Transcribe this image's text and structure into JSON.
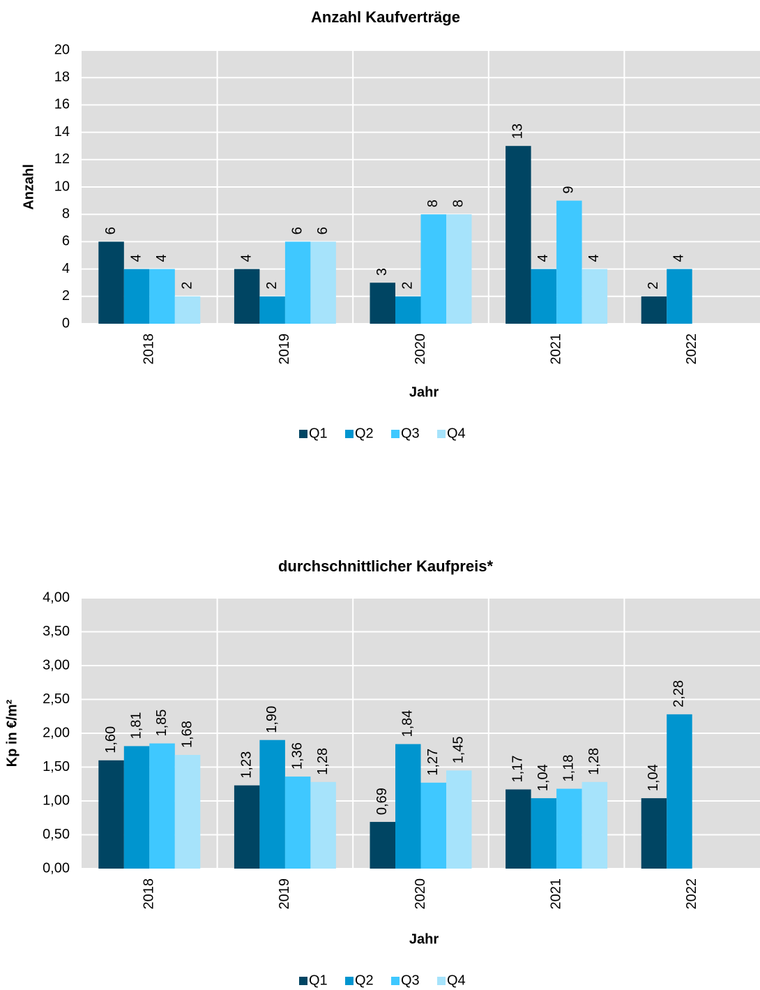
{
  "chart_data": [
    {
      "type": "bar",
      "title": "Anzahl Kaufverträge",
      "x_label": "Jahr",
      "y_label": "Anzahl",
      "categories": [
        "2018",
        "2019",
        "2020",
        "2021",
        "2022"
      ],
      "series": [
        {
          "name": "Q1",
          "color": "#004563",
          "values": [
            6,
            4,
            3,
            13,
            2
          ]
        },
        {
          "name": "Q2",
          "color": "#0095cf",
          "values": [
            4,
            2,
            2,
            4,
            4
          ]
        },
        {
          "name": "Q3",
          "color": "#3fc8ff",
          "values": [
            4,
            6,
            8,
            9,
            null
          ]
        },
        {
          "name": "Q4",
          "color": "#a6e3fb",
          "values": [
            2,
            6,
            8,
            4,
            null
          ]
        }
      ],
      "ylim": [
        0,
        20
      ],
      "yticks": [
        0,
        2,
        4,
        6,
        8,
        10,
        12,
        14,
        16,
        18,
        20
      ],
      "grid": true,
      "legend": "bottom"
    },
    {
      "type": "bar",
      "title": "durchschnittlicher Kaufpreis*",
      "x_label": "Jahr",
      "y_label": "Kp in €/m²",
      "categories": [
        "2018",
        "2019",
        "2020",
        "2021",
        "2022"
      ],
      "series": [
        {
          "name": "Q1",
          "color": "#004563",
          "values": [
            1.6,
            1.23,
            0.69,
            1.17,
            1.04
          ],
          "value_labels": [
            "1,60",
            "1,23",
            "0,69",
            "1,17",
            "1,04"
          ]
        },
        {
          "name": "Q2",
          "color": "#0095cf",
          "values": [
            1.81,
            1.9,
            1.84,
            1.04,
            2.28
          ],
          "value_labels": [
            "1,81",
            "1,90",
            "1,84",
            "1,04",
            "2,28"
          ]
        },
        {
          "name": "Q3",
          "color": "#3fc8ff",
          "values": [
            1.85,
            1.36,
            1.27,
            1.18,
            null
          ],
          "value_labels": [
            "1,85",
            "1,36",
            "1,27",
            "1,18",
            null
          ]
        },
        {
          "name": "Q4",
          "color": "#a6e3fb",
          "values": [
            1.68,
            1.28,
            1.45,
            1.28,
            null
          ],
          "value_labels": [
            "1,68",
            "1,28",
            "1,45",
            "1,28",
            null
          ]
        }
      ],
      "ylim": [
        0,
        4
      ],
      "yticks": [
        {
          "value": 0,
          "label": "0,00"
        },
        {
          "value": 0.5,
          "label": "0,50"
        },
        {
          "value": 1,
          "label": "1,00"
        },
        {
          "value": 1.5,
          "label": "1,50"
        },
        {
          "value": 2,
          "label": "2,00"
        },
        {
          "value": 2.5,
          "label": "2,50"
        },
        {
          "value": 3,
          "label": "3,00"
        },
        {
          "value": 3.5,
          "label": "3,50"
        },
        {
          "value": 4,
          "label": "4,00"
        }
      ],
      "grid": true,
      "legend": "bottom"
    }
  ]
}
